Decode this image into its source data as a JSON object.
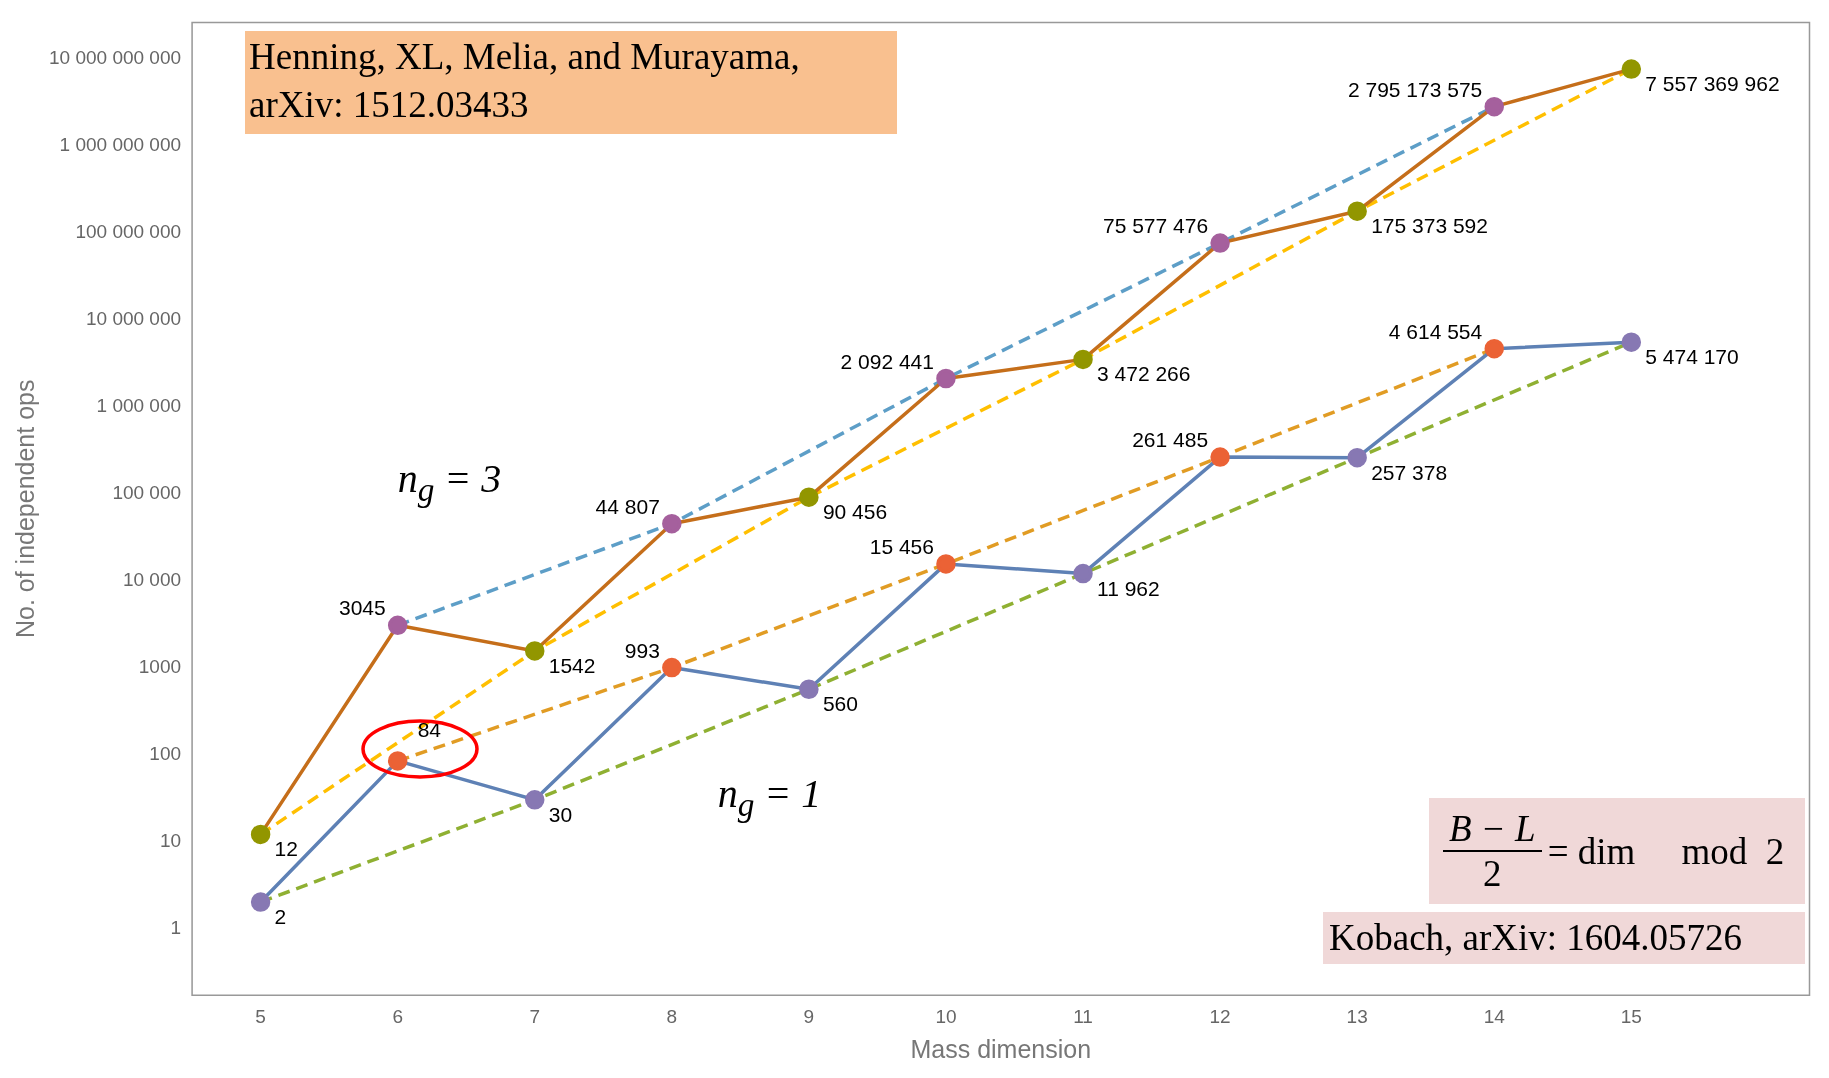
{
  "chart_data": {
    "type": "line",
    "xlabel": "Mass dimension",
    "ylabel": "No. of independent ops",
    "x": [
      5,
      6,
      7,
      8,
      9,
      10,
      11,
      12,
      13,
      14,
      15
    ],
    "xlim": [
      4.5,
      16.3
    ],
    "xticks": [
      5,
      6,
      7,
      8,
      9,
      10,
      11,
      12,
      13,
      14,
      15
    ],
    "log": "y",
    "ylim": [
      0.17,
      26000000000
    ],
    "yticks": [
      {
        "value": 1,
        "label": "1"
      },
      {
        "value": 10,
        "label": "10"
      },
      {
        "value": 100,
        "label": "100"
      },
      {
        "value": 1000,
        "label": "1000"
      },
      {
        "value": 10000,
        "label": "10 000"
      },
      {
        "value": 100000,
        "label": "100 000"
      },
      {
        "value": 1000000,
        "label": "1 000 000"
      },
      {
        "value": 10000000,
        "label": "10 000 000"
      },
      {
        "value": 100000000,
        "label": "100 000 000"
      },
      {
        "value": 1000000000,
        "label": "1 000 000 000"
      },
      {
        "value": 10000000000,
        "label": "10 000 000 000"
      }
    ],
    "grid": false,
    "legend": false,
    "series": [
      {
        "name": "n$_{g}$ = 1",
        "color": "#5e81b5",
        "marker": "circle",
        "line_style": "solid",
        "values": [
          2,
          84,
          30,
          993,
          560,
          15456,
          11962,
          261485,
          257378,
          4614554,
          5474170
        ],
        "colors": [
          "#8778b3",
          "#eb6235",
          "#8778b3",
          "#eb6235",
          "#8778b3",
          "#eb6235",
          "#8778b3",
          "#eb6235",
          "#8778b3",
          "#eb6235",
          "#8778b3"
        ],
        "value_labels": [
          "2",
          "84",
          "30",
          "993",
          "560",
          "15 456",
          "11 962",
          "261 485",
          "257 378",
          "4 614 554",
          "5 474 170"
        ]
      },
      {
        "name": "n$_{g}$ = 3",
        "color": "#c56e1a",
        "marker": "circle",
        "line_style": "solid",
        "values": [
          12,
          3045,
          1542,
          44807,
          90456,
          2092441,
          3472266,
          75577476,
          175373592,
          2795173575,
          7557369962
        ],
        "colors": [
          "#929600",
          "#a5609d",
          "#929600",
          "#a5609d",
          "#929600",
          "#a5609d",
          "#929600",
          "#a5609d",
          "#929600",
          "#a5609d",
          "#929600"
        ],
        "value_labels": [
          "12",
          "3045",
          "1542",
          "44 807",
          "90 456",
          "2 092 441",
          "3 472 266",
          "75 577 476",
          "175 373 592",
          "2 795 173 575",
          "7 557 369 962"
        ]
      },
      {
        "color": "#5d9ec7",
        "marker": "none",
        "line_style": "dashed",
        "x": [
          6,
          8,
          10,
          12,
          14
        ],
        "values": [
          3045,
          44807,
          2092441,
          75577476,
          2795173575
        ]
      },
      {
        "color": "#ffbf00",
        "marker": "none",
        "line_style": "dashed",
        "x": [
          5,
          7,
          9,
          11,
          13,
          15
        ],
        "values": [
          12,
          1542,
          90456,
          3472266,
          175373592,
          7557369962
        ]
      },
      {
        "color": "#e19c24",
        "marker": "none",
        "line_style": "dashed",
        "x": [
          6,
          8,
          10,
          12,
          14
        ],
        "values": [
          84,
          993,
          15456,
          261485,
          4614554
        ]
      },
      {
        "color": "#8fb032",
        "marker": "none",
        "line_style": "dashed",
        "x": [
          5,
          7,
          9,
          11,
          13,
          15
        ],
        "values": [
          2,
          30,
          560,
          11962,
          257378,
          5474170
        ]
      }
    ],
    "annotations": [
      "Henning, XL, Melia, and Murayama,",
      "arXiv: 1512.03433",
      "B − L",
      "2",
      "= dim     mod  2",
      "Kobach, arXiv: 1604.05726"
    ]
  }
}
